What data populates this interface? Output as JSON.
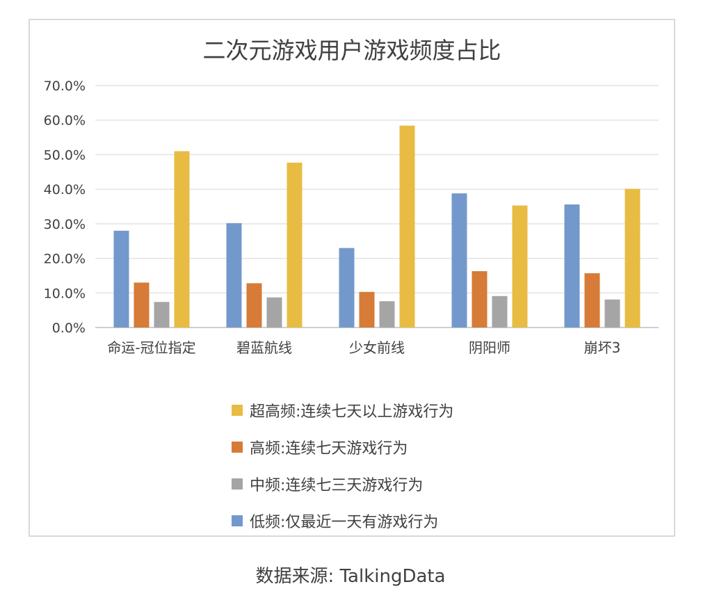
{
  "chart_data": {
    "type": "bar",
    "title": "二次元游戏用户游戏频度占比",
    "categories": [
      "命运-冠位指定",
      "碧蓝航线",
      "少女前线",
      "阴阳师",
      "崩坏3"
    ],
    "y_ticks": [
      "0.0%",
      "10.0%",
      "20.0%",
      "30.0%",
      "40.0%",
      "50.0%",
      "60.0%",
      "70.0%"
    ],
    "ylim": [
      0,
      70
    ],
    "grid": true,
    "legend_position": "bottom",
    "series": [
      {
        "name": "低频:仅最近一天有游戏行为",
        "color": "#7399cc",
        "values": [
          28.0,
          30.2,
          23.0,
          38.8,
          35.6
        ]
      },
      {
        "name": "高频:连续七天游戏行为",
        "color": "#d67b38",
        "values": [
          13.0,
          12.8,
          10.3,
          16.3,
          15.7
        ]
      },
      {
        "name": "中频:连续七三天游戏行为",
        "color": "#a5a5a5",
        "values": [
          7.4,
          8.7,
          7.6,
          9.1,
          8.1
        ]
      },
      {
        "name": "超高频:连续七天以上游戏行为",
        "color": "#e8bc43",
        "values": [
          51.0,
          47.7,
          58.4,
          35.3,
          40.1
        ]
      }
    ],
    "legend_order": [
      3,
      1,
      2,
      0
    ]
  },
  "source_text": "数据来源: TalkingData"
}
